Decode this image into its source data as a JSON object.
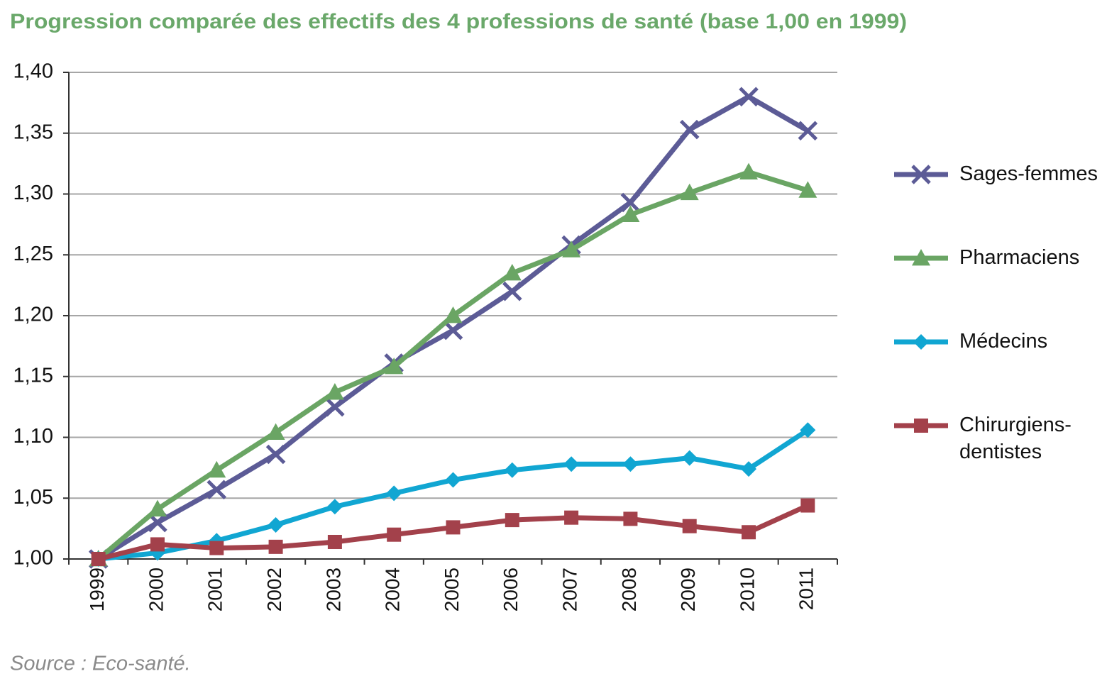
{
  "chart_data": {
    "type": "line",
    "title": "Progression comparée des effectifs des 4 professions de santé (base 1,00 en 1999)",
    "source": "Source : Eco-santé.",
    "categories": [
      "1999",
      "2000",
      "2001",
      "2002",
      "2003",
      "2004",
      "2005",
      "2006",
      "2007",
      "2008",
      "2009",
      "2010",
      "2011"
    ],
    "series": [
      {
        "name": "Sages-femmes",
        "color": "#5c5b96",
        "marker": "x",
        "values": [
          1.0,
          1.03,
          1.057,
          1.086,
          1.125,
          1.161,
          1.188,
          1.22,
          1.258,
          1.293,
          1.353,
          1.38,
          1.352
        ]
      },
      {
        "name": "Pharmaciens",
        "color": "#6aa564",
        "marker": "triangle",
        "values": [
          1.0,
          1.041,
          1.073,
          1.104,
          1.137,
          1.158,
          1.2,
          1.235,
          1.254,
          1.283,
          1.301,
          1.318,
          1.303
        ]
      },
      {
        "name": "Médecins",
        "color": "#11a6d2",
        "marker": "diamond",
        "values": [
          1.0,
          1.005,
          1.015,
          1.028,
          1.043,
          1.054,
          1.065,
          1.073,
          1.078,
          1.078,
          1.083,
          1.074,
          1.106
        ]
      },
      {
        "name": "Chirurgiens-dentistes",
        "color": "#a3414b",
        "marker": "square",
        "values": [
          1.0,
          1.012,
          1.009,
          1.01,
          1.014,
          1.02,
          1.026,
          1.032,
          1.034,
          1.033,
          1.027,
          1.022,
          1.044
        ]
      }
    ],
    "ylim": [
      1.0,
      1.4
    ],
    "yticks": [
      {
        "value": 1.0,
        "label": "1,00"
      },
      {
        "value": 1.05,
        "label": "1,05"
      },
      {
        "value": 1.1,
        "label": "1,10"
      },
      {
        "value": 1.15,
        "label": "1,15"
      },
      {
        "value": 1.2,
        "label": "1,20"
      },
      {
        "value": 1.25,
        "label": "1,25"
      },
      {
        "value": 1.3,
        "label": "1,30"
      },
      {
        "value": 1.35,
        "label": "1,35"
      },
      {
        "value": 1.4,
        "label": "1,40"
      }
    ],
    "grid": true,
    "legend": "right"
  }
}
